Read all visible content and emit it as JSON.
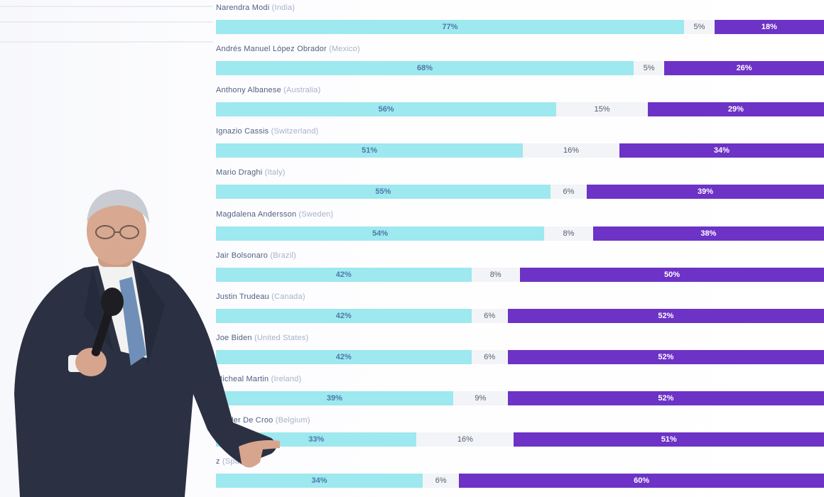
{
  "colors": {
    "approve": "#9ee8ef",
    "neutral": "#f2f4f7",
    "disapprove": "#6d32c6",
    "label": "#4f5f82"
  },
  "chart_data": {
    "type": "bar",
    "orientation": "horizontal",
    "stacked": true,
    "xlim": [
      0,
      100
    ],
    "categories": [
      {
        "name": "Narendra Modi",
        "country": "(India)"
      },
      {
        "name": "Andrés Manuel López Obrador",
        "country": "(Mexico)"
      },
      {
        "name": "Anthony Albanese",
        "country": "(Australia)"
      },
      {
        "name": "Ignazio Cassis",
        "country": "(Switzerland)"
      },
      {
        "name": "Mario Draghi",
        "country": "(Italy)"
      },
      {
        "name": "Magdalena Andersson",
        "country": "(Sweden)"
      },
      {
        "name": "Jair Bolsonaro",
        "country": "(Brazil)"
      },
      {
        "name": "Justin Trudeau",
        "country": "(Canada)"
      },
      {
        "name": "Joe Biden",
        "country": "(United States)"
      },
      {
        "name": "Micheal Martin",
        "country": "(Ireland)"
      },
      {
        "name": "xander De Croo",
        "country": "(Belgium)"
      },
      {
        "name": "z",
        "country": "(Spain)"
      }
    ],
    "series": [
      {
        "values": [
          77,
          68,
          56,
          51,
          55,
          54,
          42,
          42,
          42,
          39,
          33,
          34
        ],
        "labels": [
          "77%",
          "68%",
          "56%",
          "51%",
          "55%",
          "54%",
          "42%",
          "42%",
          "42%",
          "39%",
          "33%",
          "34%"
        ]
      },
      {
        "values": [
          5,
          5,
          15,
          16,
          6,
          8,
          8,
          6,
          6,
          9,
          16,
          6
        ],
        "labels": [
          "5%",
          "5%",
          "15%",
          "16%",
          "6%",
          "8%",
          "8%",
          "6%",
          "6%",
          "9%",
          "16%",
          "6%"
        ]
      },
      {
        "values": [
          18,
          26,
          29,
          34,
          39,
          38,
          50,
          52,
          52,
          52,
          51,
          60
        ],
        "labels": [
          "18%",
          "26%",
          "29%",
          "34%",
          "39%",
          "38%",
          "50%",
          "52%",
          "52%",
          "52%",
          "51%",
          "60%"
        ]
      }
    ]
  }
}
